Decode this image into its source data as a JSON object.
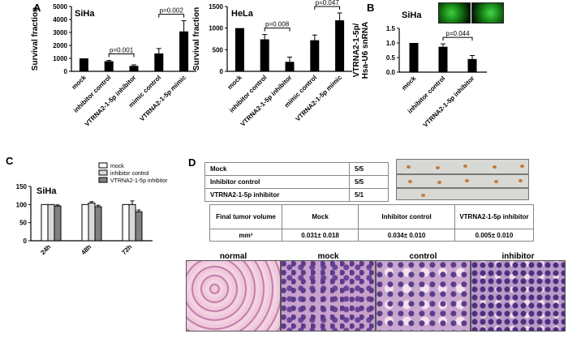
{
  "panels": {
    "A": "A",
    "B": "B",
    "C": "C",
    "D": "D"
  },
  "colors": {
    "bar": "#000000",
    "mock": "#ffffff",
    "inhibitor_control": "#d9d9d9",
    "vtrna_inhibitor": "#808080",
    "tissue": "#b06aa8"
  },
  "chart_data": [
    {
      "id": "A-SiHa",
      "type": "bar",
      "title": "SiHa",
      "ylabel": "Survival fraction",
      "categories": [
        "mock",
        "inhibitor control",
        "VTRNA2-1-5p inhibitor",
        "mimic control",
        "VTRNA2-1-5p mimic"
      ],
      "values": [
        1000,
        780,
        420,
        1380,
        3080
      ],
      "errors": [
        0,
        60,
        80,
        380,
        820
      ],
      "ylim": [
        0,
        5000
      ],
      "yticks": [
        "0",
        "1000",
        "2000",
        "3000",
        "4000",
        "5000"
      ],
      "annotations": [
        {
          "text": "p=0.001",
          "from": 1,
          "to": 2
        },
        {
          "text": "p=0.002",
          "from": 3,
          "to": 4
        }
      ]
    },
    {
      "id": "A-HeLa",
      "type": "bar",
      "title": "HeLa",
      "ylabel": "Survival fraction",
      "categories": [
        "mock",
        "inhibitor control",
        "VTRNA2-1-5p inhibitor",
        "mimic control",
        "VTRNA2-1-5p mimic"
      ],
      "values": [
        1000,
        740,
        220,
        720,
        1180
      ],
      "errors": [
        0,
        110,
        110,
        120,
        170
      ],
      "ylim": [
        0,
        1500
      ],
      "yticks": [
        "0",
        "500",
        "1000",
        "1500"
      ],
      "annotations": [
        {
          "text": "p=0.008",
          "from": 1,
          "to": 2
        },
        {
          "text": "p=0.047",
          "from": 3,
          "to": 4
        }
      ]
    },
    {
      "id": "B-SiHa",
      "type": "bar",
      "title": "SiHa",
      "ylabel": "VTRNA2-1-5p/ Hsa-U6 snRNA",
      "categories": [
        "mock",
        "inhibitor control",
        "VTRNA2-1-5p inhibitor"
      ],
      "values": [
        1.0,
        0.87,
        0.45
      ],
      "errors": [
        0,
        0.1,
        0.12
      ],
      "ylim": [
        0,
        1.5
      ],
      "yticks": [
        "0.0",
        "0.5",
        "1.0",
        "1.5"
      ],
      "annotations": [
        {
          "text": "p=0.044",
          "from": 1,
          "to": 2
        }
      ]
    },
    {
      "id": "C-SiHa",
      "type": "bar",
      "title": "SiHa",
      "ylabel": "Cell viability (%)",
      "categories": [
        "24h",
        "48h",
        "72h"
      ],
      "series": [
        {
          "name": "mock",
          "values": [
            100,
            100,
            100
          ],
          "errors": [
            0,
            0,
            0
          ]
        },
        {
          "name": "inhibitor control",
          "values": [
            100,
            104,
            100
          ],
          "errors": [
            0,
            4,
            10
          ]
        },
        {
          "name": "VTRNA2-1-5p inhibitor",
          "values": [
            96,
            94,
            80
          ],
          "errors": [
            3,
            4,
            5
          ]
        }
      ],
      "ylim": [
        0,
        150
      ],
      "yticks": [
        "0",
        "50",
        "100",
        "150"
      ],
      "legend": "top-right"
    }
  ],
  "tableD": {
    "rows": [
      {
        "label": "Mock",
        "value": "5/5"
      },
      {
        "label": "Inhibitor control",
        "value": "5/5"
      },
      {
        "label": "VTRNA2-1-5p  inhibitor",
        "value": "5/1"
      }
    ]
  },
  "volumeTable": {
    "headers": [
      "Final tumor volume",
      "Mock",
      "Inhibitor control",
      "VTRNA2-1-5p inhibitor"
    ],
    "row": [
      "mm³",
      "0.031± 0.018",
      "0.034± 0.010",
      "0.005± 0.010"
    ]
  },
  "tissue_labels": [
    "normal",
    "mock",
    "control",
    "inhibitor"
  ]
}
